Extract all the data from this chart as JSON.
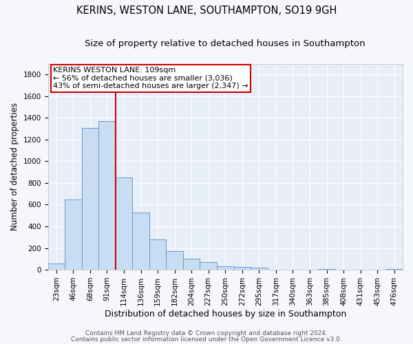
{
  "title": "KERINS, WESTON LANE, SOUTHAMPTON, SO19 9GH",
  "subtitle": "Size of property relative to detached houses in Southampton",
  "xlabel": "Distribution of detached houses by size in Southampton",
  "ylabel": "Number of detached properties",
  "bar_labels": [
    "23sqm",
    "46sqm",
    "68sqm",
    "91sqm",
    "114sqm",
    "136sqm",
    "159sqm",
    "182sqm",
    "204sqm",
    "227sqm",
    "250sqm",
    "272sqm",
    "295sqm",
    "317sqm",
    "340sqm",
    "363sqm",
    "385sqm",
    "408sqm",
    "431sqm",
    "453sqm",
    "476sqm"
  ],
  "bar_values": [
    55,
    645,
    1305,
    1370,
    850,
    525,
    280,
    175,
    105,
    70,
    35,
    25,
    20,
    0,
    0,
    0,
    5,
    0,
    0,
    0,
    5
  ],
  "bar_color": "#c9ddf2",
  "bar_edge_color": "#6699cc",
  "bar_width": 1.0,
  "vline_x_index": 4,
  "vline_color": "#cc0000",
  "ylim": [
    0,
    1900
  ],
  "yticks": [
    0,
    200,
    400,
    600,
    800,
    1000,
    1200,
    1400,
    1600,
    1800
  ],
  "annotation_title": "KERINS WESTON LANE: 109sqm",
  "annotation_line1": "← 56% of detached houses are smaller (3,036)",
  "annotation_line2": "43% of semi-detached houses are larger (2,347) →",
  "footer_line1": "Contains HM Land Registry data © Crown copyright and database right 2024.",
  "footer_line2": "Contains public sector information licensed under the Open Government Licence v3.0.",
  "plot_bg_color": "#e8eef8",
  "fig_bg_color": "#f5f7fc",
  "grid_color": "#ffffff",
  "title_fontsize": 10.5,
  "subtitle_fontsize": 9.5,
  "xlabel_fontsize": 9,
  "ylabel_fontsize": 8.5,
  "tick_fontsize": 7.5,
  "annot_fontsize": 8,
  "footer_fontsize": 6.5
}
